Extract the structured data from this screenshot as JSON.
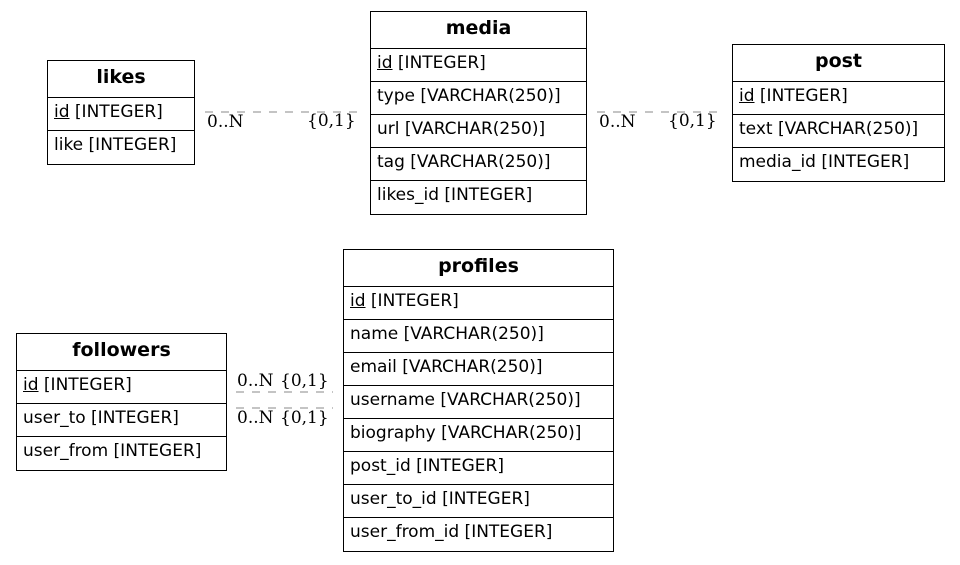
{
  "entities": {
    "likes": {
      "name": "likes",
      "pk": "id",
      "pk_type": "[INTEGER]",
      "fields": [
        "like [INTEGER]"
      ]
    },
    "media": {
      "name": "media",
      "pk": "id",
      "pk_type": "[INTEGER]",
      "fields": [
        "type [VARCHAR(250)]",
        "url [VARCHAR(250)]",
        "tag [VARCHAR(250)]",
        "likes_id [INTEGER]"
      ]
    },
    "post": {
      "name": "post",
      "pk": "id",
      "pk_type": "[INTEGER]",
      "fields": [
        "text [VARCHAR(250)]",
        "media_id [INTEGER]"
      ]
    },
    "profiles": {
      "name": "profiles",
      "pk": "id",
      "pk_type": "[INTEGER]",
      "fields": [
        "name [VARCHAR(250)]",
        "email [VARCHAR(250)]",
        "username [VARCHAR(250)]",
        "biography [VARCHAR(250)]",
        "post_id [INTEGER]",
        "user_to_id [INTEGER]",
        "user_from_id [INTEGER]"
      ]
    },
    "followers": {
      "name": "followers",
      "pk": "id",
      "pk_type": "[INTEGER]",
      "fields": [
        "user_to [INTEGER]",
        "user_from [INTEGER]"
      ]
    }
  },
  "relations": [
    {
      "from": "likes",
      "to": "media",
      "from_card": "0..N",
      "to_card": "{0,1}"
    },
    {
      "from": "media",
      "to": "post",
      "from_card": "0..N",
      "to_card": "{0,1}"
    },
    {
      "from": "followers",
      "to": "profiles",
      "from_card": "0..N",
      "to_card": "{0,1}"
    },
    {
      "from": "followers",
      "to": "profiles",
      "from_card": "0..N",
      "to_card": "{0,1}"
    }
  ],
  "colors": {
    "edge": "#888888",
    "border": "#000000"
  }
}
